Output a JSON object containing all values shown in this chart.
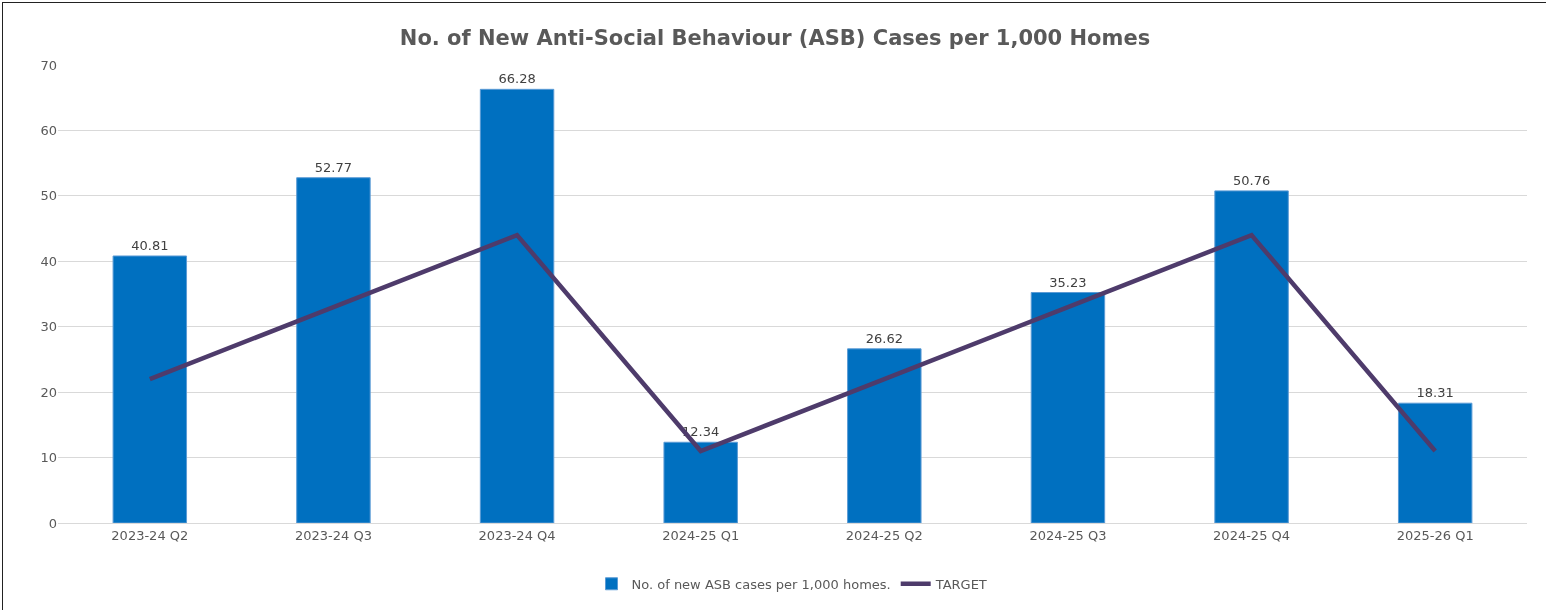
{
  "chart_data": {
    "type": "bar",
    "title": "No. of New Anti-Social Behaviour (ASB) Cases per 1,000 Homes",
    "categories": [
      "2023-24 Q2",
      "2023-24 Q3",
      "2023-24 Q4",
      "2024-25 Q1",
      "2024-25 Q2",
      "2024-25 Q3",
      "2024-25 Q4",
      "2025-26 Q1"
    ],
    "series": [
      {
        "name": "No. of new ASB cases per 1,000 homes.",
        "color": "#0070c0",
        "values": [
          40.81,
          52.77,
          66.28,
          12.34,
          26.62,
          35.23,
          50.76,
          18.31
        ],
        "data_labels": true
      },
      {
        "name": "TARGET",
        "type": "line",
        "color": "#4e3b6b",
        "values": [
          22,
          33,
          44,
          11,
          22,
          33,
          44,
          11
        ],
        "marker": "none",
        "line_style": "solid"
      }
    ],
    "ylim": [
      0,
      70
    ],
    "yticks": [
      0,
      10,
      20,
      30,
      40,
      50,
      60,
      70
    ],
    "grid": "y",
    "legend": "bottom"
  }
}
